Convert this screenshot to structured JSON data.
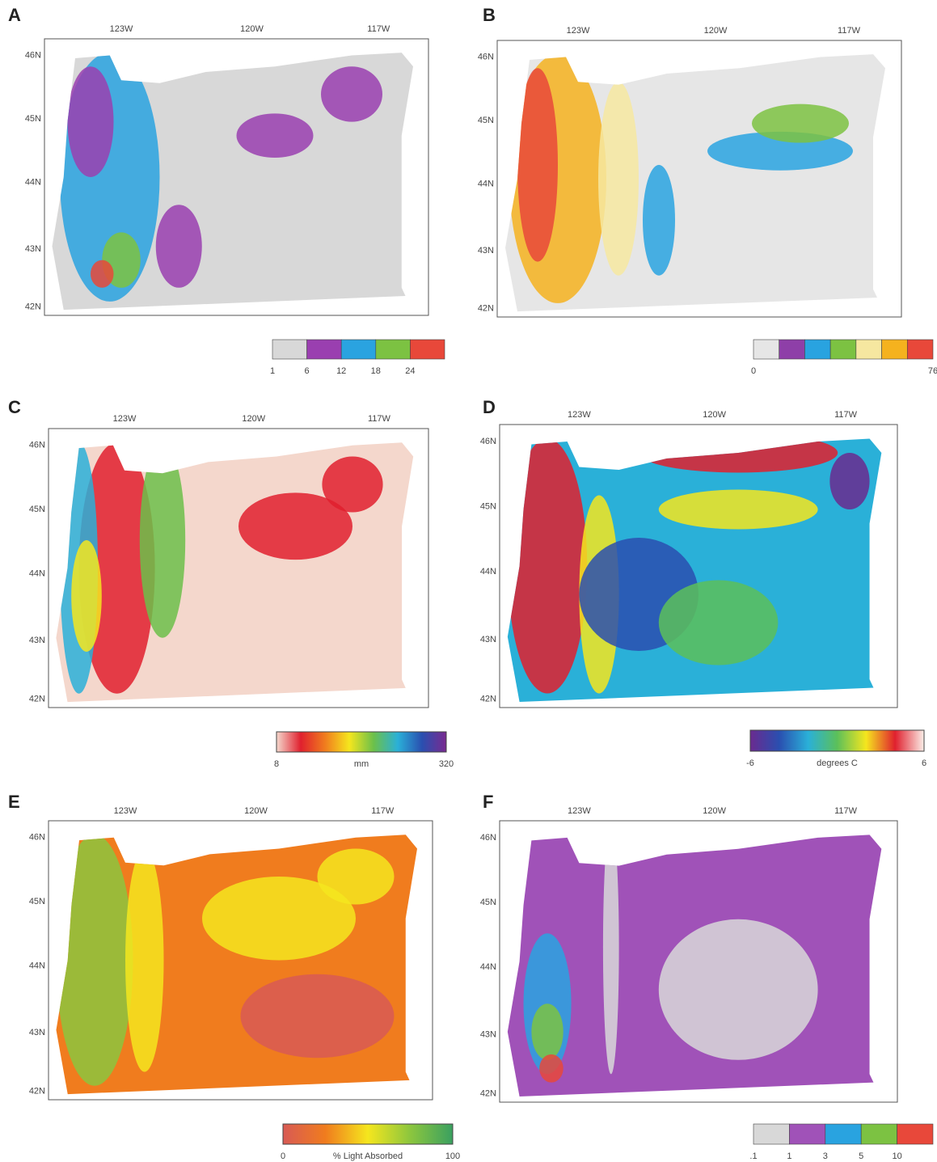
{
  "panels": [
    {
      "letter": "A",
      "lon_labels": [
        "123W",
        "120W",
        "117W"
      ],
      "lat_labels": [
        "46N",
        "45N",
        "44N",
        "43N",
        "42N"
      ],
      "legend": {
        "kind": "discrete",
        "colors": [
          "#d8d8d8",
          "#9a3fb0",
          "#2aa3e0",
          "#7cc242",
          "#e8483a"
        ],
        "labels": [
          "1",
          "6",
          "12",
          "18",
          "24"
        ]
      }
    },
    {
      "letter": "B",
      "lon_labels": [
        "123W",
        "120W",
        "117W"
      ],
      "lat_labels": [
        "46N",
        "45N",
        "44N",
        "43N",
        "42N"
      ],
      "legend": {
        "kind": "discrete",
        "colors": [
          "#e6e6e6",
          "#8e3fa8",
          "#29a3e0",
          "#7cc242",
          "#f6e7a0",
          "#f5b21e",
          "#e8483a"
        ],
        "labels": [
          "0",
          "76"
        ]
      }
    },
    {
      "letter": "C",
      "lon_labels": [
        "123W",
        "120W",
        "117W"
      ],
      "lat_labels": [
        "46N",
        "45N",
        "44N",
        "43N",
        "42N"
      ],
      "legend": {
        "kind": "gradient",
        "colors": [
          "#f4d7cc",
          "#e0202e",
          "#f07c1e",
          "#f5e61e",
          "#6cc04a",
          "#2ab0d8",
          "#2a4fb0",
          "#7a2a90"
        ],
        "labels": [
          "8",
          "mm",
          "320"
        ]
      }
    },
    {
      "letter": "D",
      "lon_labels": [
        "123W",
        "120W",
        "117W"
      ],
      "lat_labels": [
        "46N",
        "45N",
        "44N",
        "43N",
        "42N"
      ],
      "legend": {
        "kind": "gradient",
        "colors": [
          "#6a2a8f",
          "#2a4fb0",
          "#2ab0d8",
          "#5cc05a",
          "#f5e61e",
          "#e0202e",
          "#fbeee8"
        ],
        "labels": [
          "-6",
          "degrees C",
          "6"
        ]
      }
    },
    {
      "letter": "E",
      "lon_labels": [
        "123W",
        "120W",
        "117W"
      ],
      "lat_labels": [
        "46N",
        "45N",
        "44N",
        "43N",
        "42N"
      ],
      "legend": {
        "kind": "gradient",
        "colors": [
          "#d85a55",
          "#f07c1e",
          "#f5e61e",
          "#8cc63e",
          "#3aa060"
        ],
        "labels": [
          "0",
          "% Light Absorbed",
          "100"
        ]
      }
    },
    {
      "letter": "F",
      "lon_labels": [
        "123W",
        "120W",
        "117W"
      ],
      "lat_labels": [
        "46N",
        "45N",
        "44N",
        "43N",
        "42N"
      ],
      "legend": {
        "kind": "discrete",
        "colors": [
          "#d8d8d8",
          "#a052b8",
          "#29a3e0",
          "#7cc242",
          "#e8483a"
        ],
        "labels": [
          ".1",
          "1",
          "3",
          "5",
          "10"
        ]
      }
    }
  ]
}
